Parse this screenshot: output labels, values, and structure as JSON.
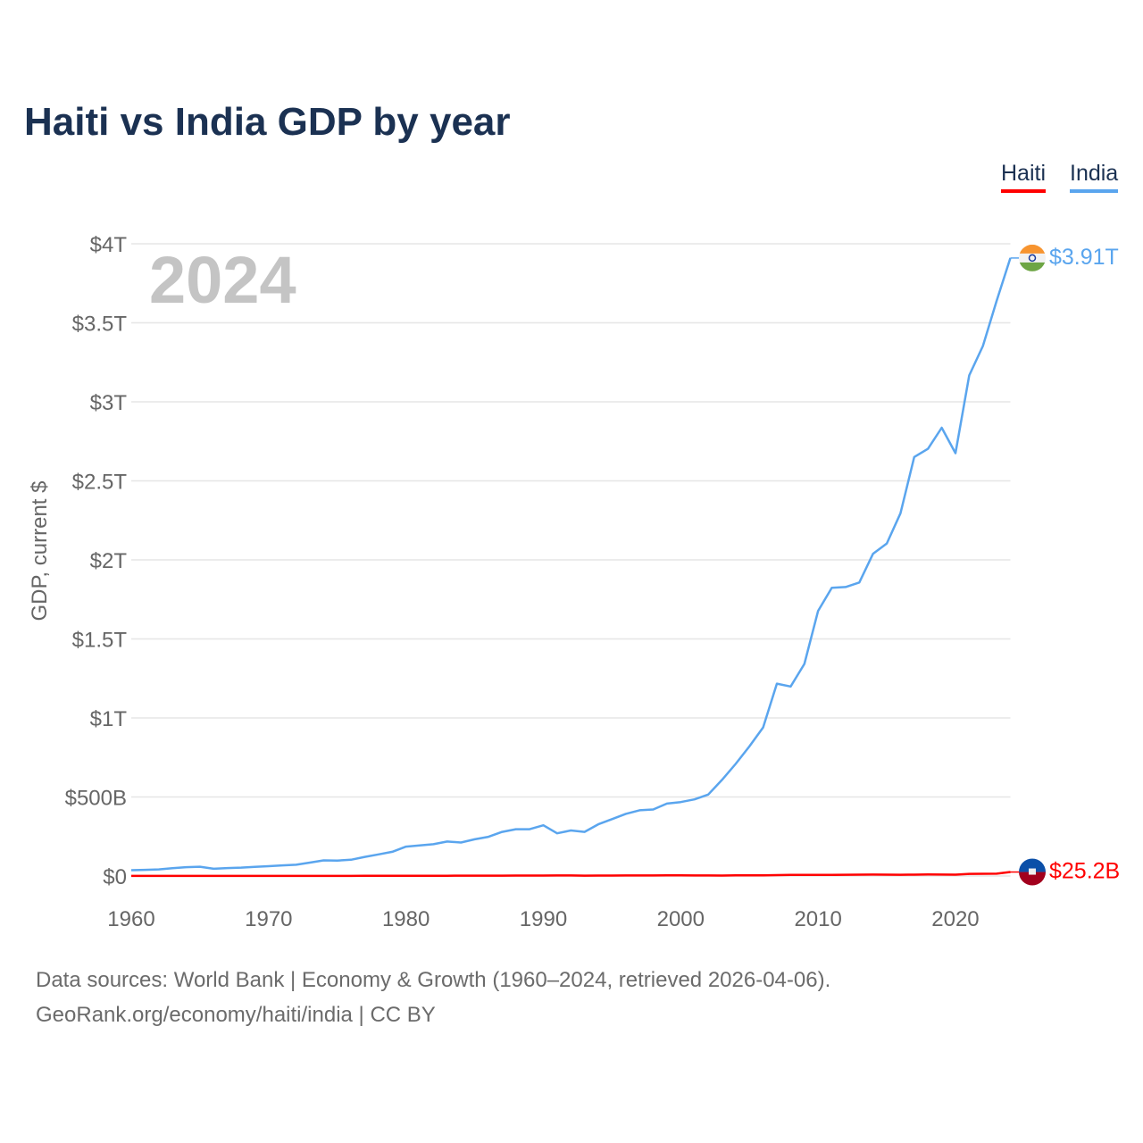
{
  "chart_data": {
    "type": "line",
    "title": "Haiti vs India GDP by year",
    "ylabel": "GDP, current $",
    "xlabel": "",
    "year_watermark": "2024",
    "xlim": [
      1960,
      2024
    ],
    "ylim": [
      0,
      4000
    ],
    "y_unit": "billions USD",
    "grid": true,
    "legend_position": "top-right",
    "x_ticks": [
      1960,
      1970,
      1980,
      1990,
      2000,
      2010,
      2020
    ],
    "x_tick_labels": [
      "1960",
      "1970",
      "1980",
      "1990",
      "2000",
      "2010",
      "2020"
    ],
    "y_ticks": [
      0,
      500,
      1000,
      1500,
      2000,
      2500,
      3000,
      3500,
      4000
    ],
    "y_tick_labels": [
      "$0",
      "$500B",
      "$1T",
      "$1.5T",
      "$2T",
      "$2.5T",
      "$3T",
      "$3.5T",
      "$4T"
    ],
    "x": [
      1960,
      1961,
      1962,
      1963,
      1964,
      1965,
      1966,
      1967,
      1968,
      1969,
      1970,
      1971,
      1972,
      1973,
      1974,
      1975,
      1976,
      1977,
      1978,
      1979,
      1980,
      1981,
      1982,
      1983,
      1984,
      1985,
      1986,
      1987,
      1988,
      1989,
      1990,
      1991,
      1992,
      1993,
      1994,
      1995,
      1996,
      1997,
      1998,
      1999,
      2000,
      2001,
      2002,
      2003,
      2004,
      2005,
      2006,
      2007,
      2008,
      2009,
      2010,
      2011,
      2012,
      2013,
      2014,
      2015,
      2016,
      2017,
      2018,
      2019,
      2020,
      2021,
      2022,
      2023,
      2024
    ],
    "series": [
      {
        "name": "Haiti",
        "color": "#ff0000",
        "end_label": "$25.2B",
        "values": [
          0.3,
          0.3,
          0.3,
          0.3,
          0.3,
          0.3,
          0.3,
          0.3,
          0.3,
          0.3,
          0.4,
          0.4,
          0.4,
          0.5,
          0.6,
          0.7,
          0.8,
          0.9,
          1.0,
          1.2,
          1.5,
          1.6,
          1.7,
          1.8,
          2.0,
          2.2,
          2.5,
          2.4,
          2.6,
          2.8,
          3.1,
          3.6,
          3.2,
          2.5,
          2.6,
          3.0,
          3.2,
          3.5,
          3.6,
          3.8,
          3.95,
          3.6,
          3.4,
          2.9,
          3.7,
          4.3,
          4.8,
          5.9,
          6.5,
          6.6,
          6.6,
          7.5,
          7.9,
          8.5,
          8.8,
          8.7,
          8.1,
          8.4,
          9.7,
          8.9,
          8.4,
          13.6,
          14.4,
          14.7,
          25.2
        ]
      },
      {
        "name": "India",
        "color": "#5aa5ee",
        "end_label": "$3.91T",
        "values": [
          37,
          39,
          42,
          49,
          56,
          59,
          46,
          50,
          53,
          58,
          62,
          67,
          71,
          85,
          99,
          98,
          103,
          121,
          137,
          153,
          186,
          193,
          201,
          218,
          212,
          232,
          248,
          279,
          296,
          296,
          321,
          270,
          288,
          279,
          327,
          360,
          393,
          416,
          421,
          458,
          468,
          485,
          515,
          608,
          709,
          820,
          940,
          1217,
          1199,
          1342,
          1676,
          1823,
          1828,
          1857,
          2039,
          2104,
          2295,
          2651,
          2703,
          2836,
          2675,
          3167,
          3353,
          3639,
          3910
        ]
      }
    ]
  },
  "footer": {
    "line1": "Data sources: World Bank | Economy & Growth (1960–2024, retrieved 2026-04-06).",
    "line2": "GeoRank.org/economy/haiti/india | CC BY"
  }
}
